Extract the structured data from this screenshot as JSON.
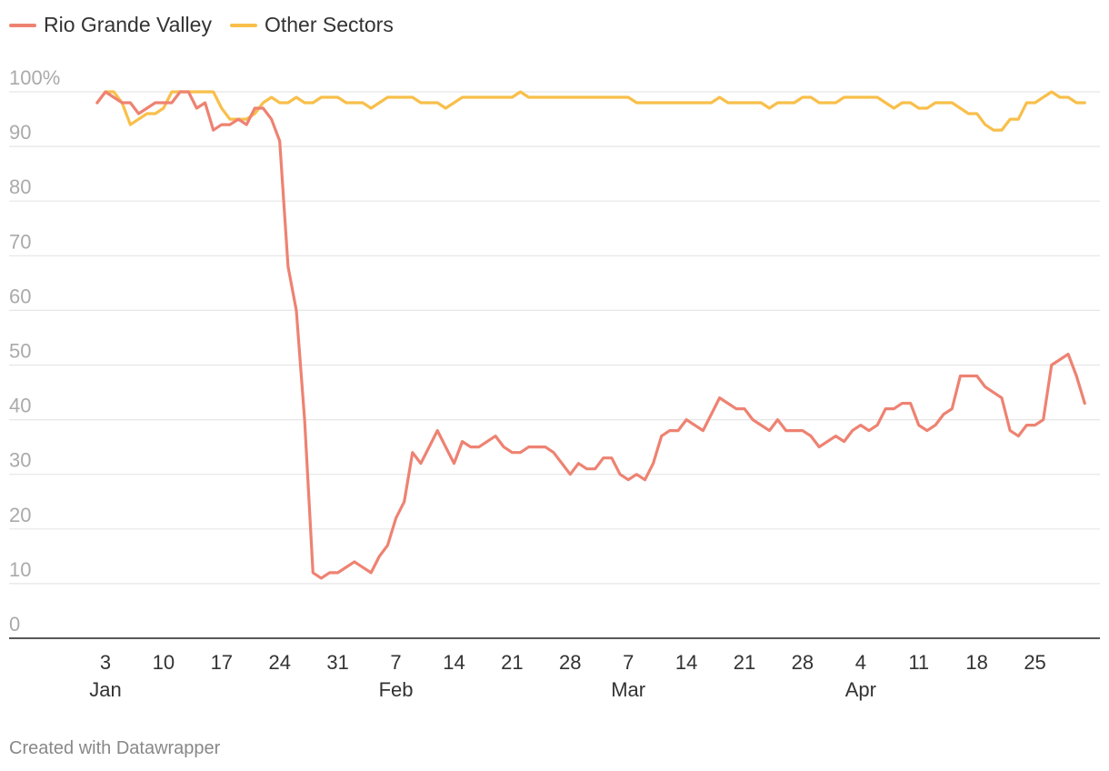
{
  "colors": {
    "rgv": "#ee8272",
    "other": "#f8bf4a",
    "grid": "#e6e6e6",
    "axis": "#222222"
  },
  "credit": "Created with Datawrapper",
  "chart_data": {
    "type": "line",
    "title": "",
    "xlabel": "",
    "ylabel": "",
    "ylim": [
      0,
      100
    ],
    "grid": true,
    "legend_position": "top-left",
    "y_ticks": [
      {
        "value": 100,
        "label": "100%"
      },
      {
        "value": 90,
        "label": "90"
      },
      {
        "value": 80,
        "label": "80"
      },
      {
        "value": 70,
        "label": "70"
      },
      {
        "value": 60,
        "label": "60"
      },
      {
        "value": 50,
        "label": "50"
      },
      {
        "value": 40,
        "label": "40"
      },
      {
        "value": 30,
        "label": "30"
      },
      {
        "value": 20,
        "label": "20"
      },
      {
        "value": 10,
        "label": "10"
      },
      {
        "value": 0,
        "label": "0"
      }
    ],
    "x_ticks": [
      {
        "date": "Jan 3",
        "label": "3",
        "month": "Jan"
      },
      {
        "date": "Jan 10",
        "label": "10"
      },
      {
        "date": "Jan 17",
        "label": "17"
      },
      {
        "date": "Jan 24",
        "label": "24"
      },
      {
        "date": "Jan 31",
        "label": "31"
      },
      {
        "date": "Feb 7",
        "label": "7",
        "month": "Feb"
      },
      {
        "date": "Feb 14",
        "label": "14"
      },
      {
        "date": "Feb 21",
        "label": "21"
      },
      {
        "date": "Feb 28",
        "label": "28"
      },
      {
        "date": "Mar 7",
        "label": "7",
        "month": "Mar"
      },
      {
        "date": "Mar 14",
        "label": "14"
      },
      {
        "date": "Mar 21",
        "label": "21"
      },
      {
        "date": "Mar 28",
        "label": "28"
      },
      {
        "date": "Apr 4",
        "label": "4",
        "month": "Apr"
      },
      {
        "date": "Apr 11",
        "label": "11"
      },
      {
        "date": "Apr 18",
        "label": "18"
      },
      {
        "date": "Apr 25",
        "label": "25"
      }
    ],
    "series": [
      {
        "name": "Rio Grande Valley",
        "points": [
          [
            "Jan 2",
            98
          ],
          [
            "Jan 3",
            100
          ],
          [
            "Jan 4",
            99
          ],
          [
            "Jan 5",
            98
          ],
          [
            "Jan 6",
            98
          ],
          [
            "Jan 7",
            96
          ],
          [
            "Jan 8",
            97
          ],
          [
            "Jan 9",
            98
          ],
          [
            "Jan 10",
            98
          ],
          [
            "Jan 11",
            98
          ],
          [
            "Jan 12",
            100
          ],
          [
            "Jan 13",
            100
          ],
          [
            "Jan 14",
            97
          ],
          [
            "Jan 15",
            98
          ],
          [
            "Jan 16",
            93
          ],
          [
            "Jan 17",
            94
          ],
          [
            "Jan 18",
            94
          ],
          [
            "Jan 19",
            95
          ],
          [
            "Jan 20",
            94
          ],
          [
            "Jan 21",
            97
          ],
          [
            "Jan 22",
            97
          ],
          [
            "Jan 23",
            95
          ],
          [
            "Jan 24",
            91
          ],
          [
            "Jan 25",
            68
          ],
          [
            "Jan 26",
            60
          ],
          [
            "Jan 27",
            40
          ],
          [
            "Jan 28",
            12
          ],
          [
            "Jan 29",
            11
          ],
          [
            "Jan 30",
            12
          ],
          [
            "Jan 31",
            12
          ],
          [
            "Feb 1",
            13
          ],
          [
            "Feb 2",
            14
          ],
          [
            "Feb 3",
            13
          ],
          [
            "Feb 4",
            12
          ],
          [
            "Feb 5",
            15
          ],
          [
            "Feb 6",
            17
          ],
          [
            "Feb 7",
            22
          ],
          [
            "Feb 8",
            25
          ],
          [
            "Feb 9",
            34
          ],
          [
            "Feb 10",
            32
          ],
          [
            "Feb 11",
            35
          ],
          [
            "Feb 12",
            38
          ],
          [
            "Feb 13",
            35
          ],
          [
            "Feb 14",
            32
          ],
          [
            "Feb 15",
            36
          ],
          [
            "Feb 16",
            35
          ],
          [
            "Feb 17",
            35
          ],
          [
            "Feb 18",
            36
          ],
          [
            "Feb 19",
            37
          ],
          [
            "Feb 20",
            35
          ],
          [
            "Feb 21",
            34
          ],
          [
            "Feb 22",
            34
          ],
          [
            "Feb 23",
            35
          ],
          [
            "Feb 24",
            35
          ],
          [
            "Feb 25",
            35
          ],
          [
            "Feb 26",
            34
          ],
          [
            "Feb 27",
            32
          ],
          [
            "Feb 28",
            30
          ],
          [
            "Mar 1",
            32
          ],
          [
            "Mar 2",
            31
          ],
          [
            "Mar 3",
            31
          ],
          [
            "Mar 4",
            33
          ],
          [
            "Mar 5",
            33
          ],
          [
            "Mar 6",
            30
          ],
          [
            "Mar 7",
            29
          ],
          [
            "Mar 8",
            30
          ],
          [
            "Mar 9",
            29
          ],
          [
            "Mar 10",
            32
          ],
          [
            "Mar 11",
            37
          ],
          [
            "Mar 12",
            38
          ],
          [
            "Mar 13",
            38
          ],
          [
            "Mar 14",
            40
          ],
          [
            "Mar 15",
            39
          ],
          [
            "Mar 16",
            38
          ],
          [
            "Mar 17",
            41
          ],
          [
            "Mar 18",
            44
          ],
          [
            "Mar 19",
            43
          ],
          [
            "Mar 20",
            42
          ],
          [
            "Mar 21",
            42
          ],
          [
            "Mar 22",
            40
          ],
          [
            "Mar 23",
            39
          ],
          [
            "Mar 24",
            38
          ],
          [
            "Mar 25",
            40
          ],
          [
            "Mar 26",
            38
          ],
          [
            "Mar 27",
            38
          ],
          [
            "Mar 28",
            38
          ],
          [
            "Mar 29",
            37
          ],
          [
            "Mar 30",
            35
          ],
          [
            "Mar 31",
            36
          ],
          [
            "Apr 1",
            37
          ],
          [
            "Apr 2",
            36
          ],
          [
            "Apr 3",
            38
          ],
          [
            "Apr 4",
            39
          ],
          [
            "Apr 5",
            38
          ],
          [
            "Apr 6",
            39
          ],
          [
            "Apr 7",
            42
          ],
          [
            "Apr 8",
            42
          ],
          [
            "Apr 9",
            43
          ],
          [
            "Apr 10",
            43
          ],
          [
            "Apr 11",
            39
          ],
          [
            "Apr 12",
            38
          ],
          [
            "Apr 13",
            39
          ],
          [
            "Apr 14",
            41
          ],
          [
            "Apr 15",
            42
          ],
          [
            "Apr 16",
            48
          ],
          [
            "Apr 17",
            48
          ],
          [
            "Apr 18",
            48
          ],
          [
            "Apr 19",
            46
          ],
          [
            "Apr 20",
            45
          ],
          [
            "Apr 21",
            44
          ],
          [
            "Apr 22",
            38
          ],
          [
            "Apr 23",
            37
          ],
          [
            "Apr 24",
            39
          ],
          [
            "Apr 25",
            39
          ],
          [
            "Apr 26",
            40
          ],
          [
            "Apr 27",
            50
          ],
          [
            "Apr 28",
            51
          ],
          [
            "Apr 29",
            52
          ],
          [
            "Apr 30",
            48
          ],
          [
            "May 1",
            43
          ]
        ]
      },
      {
        "name": "Other Sectors",
        "points": [
          [
            "Jan 2",
            98
          ],
          [
            "Jan 3",
            100
          ],
          [
            "Jan 4",
            100
          ],
          [
            "Jan 5",
            98
          ],
          [
            "Jan 6",
            94
          ],
          [
            "Jan 7",
            95
          ],
          [
            "Jan 8",
            96
          ],
          [
            "Jan 9",
            96
          ],
          [
            "Jan 10",
            97
          ],
          [
            "Jan 11",
            100
          ],
          [
            "Jan 12",
            100
          ],
          [
            "Jan 13",
            100
          ],
          [
            "Jan 14",
            100
          ],
          [
            "Jan 15",
            100
          ],
          [
            "Jan 16",
            100
          ],
          [
            "Jan 17",
            97
          ],
          [
            "Jan 18",
            95
          ],
          [
            "Jan 19",
            95
          ],
          [
            "Jan 20",
            95
          ],
          [
            "Jan 21",
            96
          ],
          [
            "Jan 22",
            98
          ],
          [
            "Jan 23",
            99
          ],
          [
            "Jan 24",
            98
          ],
          [
            "Jan 25",
            98
          ],
          [
            "Jan 26",
            99
          ],
          [
            "Jan 27",
            98
          ],
          [
            "Jan 28",
            98
          ],
          [
            "Jan 29",
            99
          ],
          [
            "Jan 30",
            99
          ],
          [
            "Jan 31",
            99
          ],
          [
            "Feb 1",
            98
          ],
          [
            "Feb 2",
            98
          ],
          [
            "Feb 3",
            98
          ],
          [
            "Feb 4",
            97
          ],
          [
            "Feb 5",
            98
          ],
          [
            "Feb 6",
            99
          ],
          [
            "Feb 7",
            99
          ],
          [
            "Feb 8",
            99
          ],
          [
            "Feb 9",
            99
          ],
          [
            "Feb 10",
            98
          ],
          [
            "Feb 11",
            98
          ],
          [
            "Feb 12",
            98
          ],
          [
            "Feb 13",
            97
          ],
          [
            "Feb 14",
            98
          ],
          [
            "Feb 15",
            99
          ],
          [
            "Feb 16",
            99
          ],
          [
            "Feb 17",
            99
          ],
          [
            "Feb 18",
            99
          ],
          [
            "Feb 19",
            99
          ],
          [
            "Feb 20",
            99
          ],
          [
            "Feb 21",
            99
          ],
          [
            "Feb 22",
            100
          ],
          [
            "Feb 23",
            99
          ],
          [
            "Feb 24",
            99
          ],
          [
            "Feb 25",
            99
          ],
          [
            "Feb 26",
            99
          ],
          [
            "Feb 27",
            99
          ],
          [
            "Feb 28",
            99
          ],
          [
            "Mar 1",
            99
          ],
          [
            "Mar 2",
            99
          ],
          [
            "Mar 3",
            99
          ],
          [
            "Mar 4",
            99
          ],
          [
            "Mar 5",
            99
          ],
          [
            "Mar 6",
            99
          ],
          [
            "Mar 7",
            99
          ],
          [
            "Mar 8",
            98
          ],
          [
            "Mar 9",
            98
          ],
          [
            "Mar 10",
            98
          ],
          [
            "Mar 11",
            98
          ],
          [
            "Mar 12",
            98
          ],
          [
            "Mar 13",
            98
          ],
          [
            "Mar 14",
            98
          ],
          [
            "Mar 15",
            98
          ],
          [
            "Mar 16",
            98
          ],
          [
            "Mar 17",
            98
          ],
          [
            "Mar 18",
            99
          ],
          [
            "Mar 19",
            98
          ],
          [
            "Mar 20",
            98
          ],
          [
            "Mar 21",
            98
          ],
          [
            "Mar 22",
            98
          ],
          [
            "Mar 23",
            98
          ],
          [
            "Mar 24",
            97
          ],
          [
            "Mar 25",
            98
          ],
          [
            "Mar 26",
            98
          ],
          [
            "Mar 27",
            98
          ],
          [
            "Mar 28",
            99
          ],
          [
            "Mar 29",
            99
          ],
          [
            "Mar 30",
            98
          ],
          [
            "Mar 31",
            98
          ],
          [
            "Apr 1",
            98
          ],
          [
            "Apr 2",
            99
          ],
          [
            "Apr 3",
            99
          ],
          [
            "Apr 4",
            99
          ],
          [
            "Apr 5",
            99
          ],
          [
            "Apr 6",
            99
          ],
          [
            "Apr 7",
            98
          ],
          [
            "Apr 8",
            97
          ],
          [
            "Apr 9",
            98
          ],
          [
            "Apr 10",
            98
          ],
          [
            "Apr 11",
            97
          ],
          [
            "Apr 12",
            97
          ],
          [
            "Apr 13",
            98
          ],
          [
            "Apr 14",
            98
          ],
          [
            "Apr 15",
            98
          ],
          [
            "Apr 16",
            97
          ],
          [
            "Apr 17",
            96
          ],
          [
            "Apr 18",
            96
          ],
          [
            "Apr 19",
            94
          ],
          [
            "Apr 20",
            93
          ],
          [
            "Apr 21",
            93
          ],
          [
            "Apr 22",
            95
          ],
          [
            "Apr 23",
            95
          ],
          [
            "Apr 24",
            98
          ],
          [
            "Apr 25",
            98
          ],
          [
            "Apr 26",
            99
          ],
          [
            "Apr 27",
            100
          ],
          [
            "Apr 28",
            99
          ],
          [
            "Apr 29",
            99
          ],
          [
            "Apr 30",
            98
          ],
          [
            "May 1",
            98
          ]
        ]
      }
    ]
  }
}
